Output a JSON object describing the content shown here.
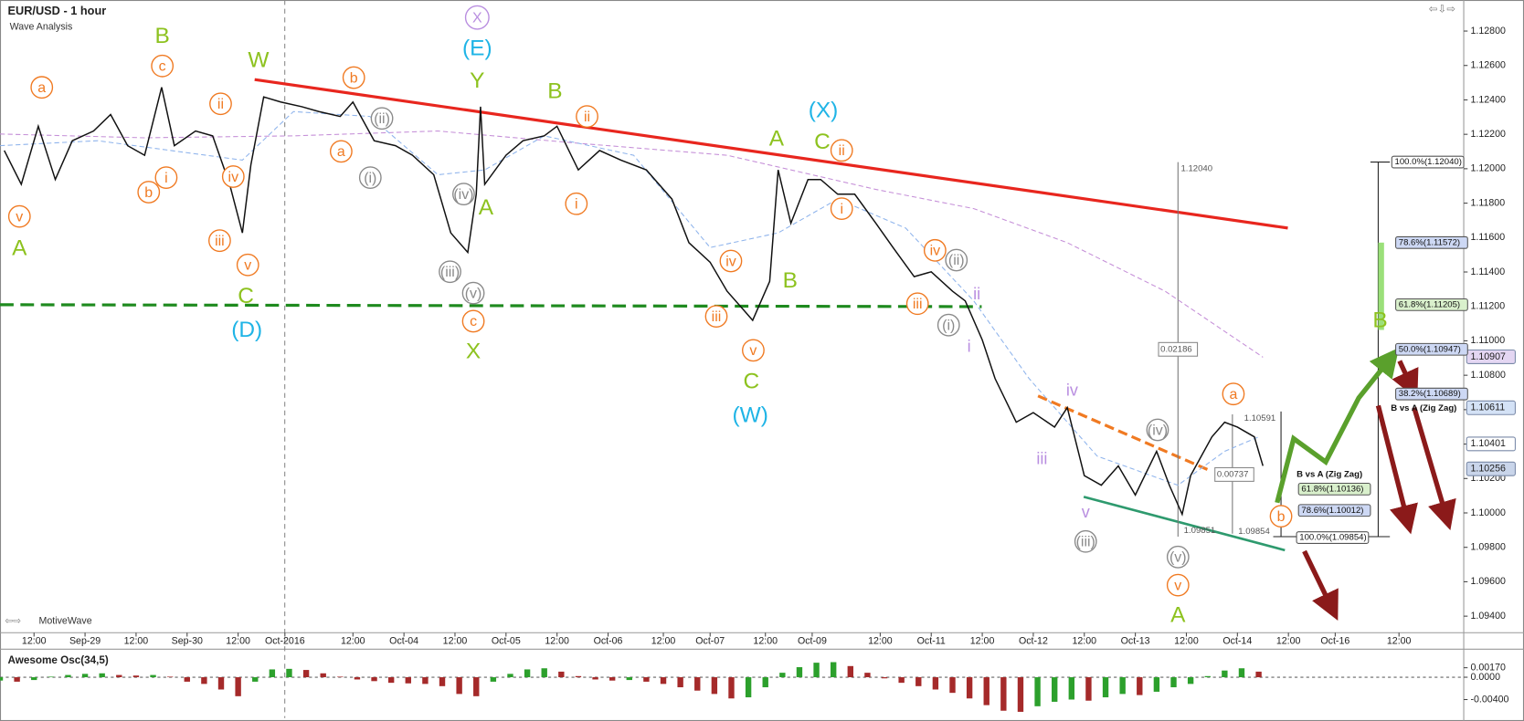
{
  "header": {
    "title": "EUR/USD - 1 hour",
    "subtitle": "Wave Analysis",
    "brand": "MotiveWave"
  },
  "chart_data": [
    {
      "type": "line",
      "xlim": [
        0,
        344
      ],
      "xticks": [
        {
          "value": 8,
          "label": "12:00"
        },
        {
          "value": 20,
          "label": "Sep-29"
        },
        {
          "value": 32,
          "label": "12:00"
        },
        {
          "value": 44,
          "label": "Sep-30"
        },
        {
          "value": 56,
          "label": "12:00"
        },
        {
          "value": 67,
          "label": "Oct-2016"
        },
        {
          "value": 83,
          "label": "12:00"
        },
        {
          "value": 95,
          "label": "Oct-04"
        },
        {
          "value": 107,
          "label": "12:00"
        },
        {
          "value": 119,
          "label": "Oct-05"
        },
        {
          "value": 131,
          "label": "12:00"
        },
        {
          "value": 143,
          "label": "Oct-06"
        },
        {
          "value": 156,
          "label": "12:00"
        },
        {
          "value": 167,
          "label": "Oct-07"
        },
        {
          "value": 180,
          "label": "12:00"
        },
        {
          "value": 191,
          "label": "Oct-09"
        },
        {
          "value": 207,
          "label": "12:00"
        },
        {
          "value": 219,
          "label": "Oct-11"
        },
        {
          "value": 231,
          "label": "12:00"
        },
        {
          "value": 243,
          "label": "Oct-12"
        },
        {
          "value": 255,
          "label": "12:00"
        },
        {
          "value": 267,
          "label": "Oct-13"
        },
        {
          "value": 279,
          "label": "12:00"
        },
        {
          "value": 291,
          "label": "Oct-14"
        },
        {
          "value": 303,
          "label": "12:00"
        },
        {
          "value": 314,
          "label": "Oct-16"
        },
        {
          "value": 329,
          "label": "12:00"
        }
      ],
      "ylim": [
        1.093,
        1.1295
      ],
      "yticks": [
        {
          "value": 1.094,
          "label": "1.09400"
        },
        {
          "value": 1.096,
          "label": "1.09600"
        },
        {
          "value": 1.098,
          "label": "1.09800"
        },
        {
          "value": 1.1,
          "label": "1.10000"
        },
        {
          "value": 1.102,
          "label": "1.10200"
        },
        {
          "value": 1.104,
          "label": "1.10400"
        },
        {
          "value": 1.106,
          "label": "1.10600"
        },
        {
          "value": 1.108,
          "label": "1.10800"
        },
        {
          "value": 1.11,
          "label": "1.11000"
        },
        {
          "value": 1.112,
          "label": "1.11200"
        },
        {
          "value": 1.114,
          "label": "1.11400"
        },
        {
          "value": 1.116,
          "label": "1.11600"
        },
        {
          "value": 1.118,
          "label": "1.11800"
        },
        {
          "value": 1.12,
          "label": "1.12000"
        },
        {
          "value": 1.122,
          "label": "1.12200"
        },
        {
          "value": 1.124,
          "label": "1.12400"
        },
        {
          "value": 1.126,
          "label": "1.12600"
        },
        {
          "value": 1.128,
          "label": "1.12800"
        }
      ],
      "series": [
        {
          "color": "#111111",
          "dashed": false,
          "x": [
            1,
            5,
            9,
            13,
            17,
            22,
            26,
            30,
            34,
            38,
            41,
            46,
            50,
            54,
            57,
            59,
            62,
            66,
            71,
            75,
            80,
            83,
            88,
            93,
            97,
            102,
            106,
            110,
            112,
            113,
            114,
            119,
            123,
            128,
            131,
            136,
            141,
            146,
            152,
            158,
            162,
            167,
            171,
            175,
            177,
            181,
            183,
            186,
            190,
            193,
            197,
            201,
            206,
            210,
            215,
            219,
            224,
            227,
            231,
            234,
            239,
            243,
            248,
            251,
            255,
            259,
            263,
            267,
            272,
            275,
            278,
            280,
            285,
            288,
            291,
            295,
            297
          ],
          "values": [
            1.12106,
            1.11909,
            1.12247,
            1.11937,
            1.12163,
            1.12219,
            1.12315,
            1.12134,
            1.12078,
            1.12473,
            1.12134,
            1.12219,
            1.12191,
            1.11909,
            1.11627,
            1.12022,
            1.12417,
            1.12388,
            1.1236,
            1.12332,
            1.12304,
            1.12388,
            1.12163,
            1.12134,
            1.12078,
            1.11965,
            1.11627,
            1.11514,
            1.11852,
            1.1236,
            1.11909,
            1.12078,
            1.12163,
            1.12191,
            1.12247,
            1.11993,
            1.12106,
            1.1205,
            1.11993,
            1.11824,
            1.1157,
            1.11457,
            1.11288,
            1.11176,
            1.11119,
            1.11345,
            1.11993,
            1.11683,
            1.11937,
            1.11937,
            1.11852,
            1.11852,
            1.11683,
            1.11542,
            1.11373,
            1.11401,
            1.11288,
            1.11232,
            1.11006,
            1.10781,
            1.10527,
            1.10583,
            1.10499,
            1.10612,
            1.10217,
            1.10161,
            1.10273,
            1.10104,
            1.10358,
            1.10161,
            1.09992,
            1.10217,
            1.10442,
            1.10527,
            1.10499,
            1.10442,
            1.10273
          ]
        },
        {
          "color": "#8fb4ec",
          "dashed": true,
          "x": [
            0,
            23,
            57,
            69,
            87,
            103,
            114,
            128,
            149,
            167,
            183,
            197,
            213,
            229,
            242,
            258,
            277,
            288,
            296
          ],
          "values": [
            1.12134,
            1.12163,
            1.1205,
            1.12332,
            1.12304,
            1.11965,
            1.11993,
            1.12191,
            1.12078,
            1.11542,
            1.11627,
            1.11824,
            1.11655,
            1.11232,
            1.10781,
            1.1033,
            1.10161,
            1.10358,
            1.10442
          ]
        },
        {
          "color": "#c58fd8",
          "dashed": true,
          "x": [
            0,
            34,
            69,
            103,
            137,
            171,
            206,
            229,
            251,
            274,
            297
          ],
          "values": [
            1.12202,
            1.1218,
            1.12191,
            1.12219,
            1.12146,
            1.12078,
            1.1188,
            1.11768,
            1.1157,
            1.11288,
            1.10905
          ]
        }
      ],
      "price_tags": [
        {
          "value": 1.10907,
          "label": "1.10907",
          "color": "#e4d6f2"
        },
        {
          "value": 1.10611,
          "label": "1.10611",
          "color": "#d4e2f6"
        },
        {
          "value": 1.10401,
          "label": "1.10401",
          "color": "#ffffff"
        },
        {
          "value": 1.10256,
          "label": "1.10256",
          "color": "#c9d5ea"
        }
      ],
      "wave_labels": [
        {
          "text": "v",
          "color": "#f07a22",
          "circled": true
        },
        {
          "text": "A",
          "color": "#8dc21f",
          "circled": false
        },
        {
          "text": "a",
          "color": "#f07a22",
          "circled": true
        },
        {
          "text": "b",
          "color": "#f07a22",
          "circled": true
        },
        {
          "text": "i",
          "color": "#f07a22",
          "circled": true
        },
        {
          "text": "c",
          "color": "#f07a22",
          "circled": true
        },
        {
          "text": "B",
          "color": "#8dc21f",
          "circled": false
        },
        {
          "text": "ii",
          "color": "#f07a22",
          "circled": true
        },
        {
          "text": "iv",
          "color": "#f07a22",
          "circled": true
        },
        {
          "text": "iii",
          "color": "#f07a22",
          "circled": true
        },
        {
          "text": "v",
          "color": "#f07a22",
          "circled": true
        },
        {
          "text": "C",
          "color": "#8dc21f",
          "circled": false
        },
        {
          "text": "(D)",
          "color": "#1fb4e6",
          "circled": false
        },
        {
          "text": "W",
          "color": "#8dc21f",
          "circled": false
        },
        {
          "text": "b",
          "color": "#f07a22",
          "circled": true
        },
        {
          "text": "a",
          "color": "#f07a22",
          "circled": true
        },
        {
          "text": "(ii)",
          "color": "#8a8a8a",
          "circled": true
        },
        {
          "text": "(i)",
          "color": "#8a8a8a",
          "circled": true
        },
        {
          "text": "X",
          "color": "#b98ee0",
          "circled": true
        },
        {
          "text": "(E)",
          "color": "#1fb4e6",
          "circled": false
        },
        {
          "text": "Y",
          "color": "#8dc21f",
          "circled": false
        },
        {
          "text": "(iv)",
          "color": "#8a8a8a",
          "circled": true
        },
        {
          "text": "A",
          "color": "#8dc21f",
          "circled": false
        },
        {
          "text": "(iii)",
          "color": "#8a8a8a",
          "circled": true
        },
        {
          "text": "(v)",
          "color": "#8a8a8a",
          "circled": true
        },
        {
          "text": "c",
          "color": "#f07a22",
          "circled": true
        },
        {
          "text": "X",
          "color": "#8dc21f",
          "circled": false
        },
        {
          "text": "B",
          "color": "#8dc21f",
          "circled": false
        },
        {
          "text": "ii",
          "color": "#f07a22",
          "circled": true
        },
        {
          "text": "i",
          "color": "#f07a22",
          "circled": true
        },
        {
          "text": "iv",
          "color": "#f07a22",
          "circled": true
        },
        {
          "text": "iii",
          "color": "#f07a22",
          "circled": true
        },
        {
          "text": "v",
          "color": "#f07a22",
          "circled": true
        },
        {
          "text": "C",
          "color": "#8dc21f",
          "circled": false
        },
        {
          "text": "(W)",
          "color": "#1fb4e6",
          "circled": false
        },
        {
          "text": "A",
          "color": "#8dc21f",
          "circled": false
        },
        {
          "text": "B",
          "color": "#8dc21f",
          "circled": false
        },
        {
          "text": "(X)",
          "color": "#1fb4e6",
          "circled": false
        },
        {
          "text": "C",
          "color": "#8dc21f",
          "circled": false
        },
        {
          "text": "ii",
          "color": "#f07a22",
          "circled": true
        },
        {
          "text": "i",
          "color": "#f07a22",
          "circled": true
        },
        {
          "text": "iv",
          "color": "#f07a22",
          "circled": true
        },
        {
          "text": "(ii)",
          "color": "#8a8a8a",
          "circled": true
        },
        {
          "text": "iii",
          "color": "#f07a22",
          "circled": true
        },
        {
          "text": "(i)",
          "color": "#8a8a8a",
          "circled": true
        },
        {
          "text": "ii",
          "color": "#b98ee0",
          "circled": false
        },
        {
          "text": "i",
          "color": "#b98ee0",
          "circled": false
        },
        {
          "text": "iv",
          "color": "#b98ee0",
          "circled": false
        },
        {
          "text": "iii",
          "color": "#b98ee0",
          "circled": false
        },
        {
          "text": "v",
          "color": "#b98ee0",
          "circled": false
        },
        {
          "text": "(iii)",
          "color": "#8a8a8a",
          "circled": true
        },
        {
          "text": "(iv)",
          "color": "#8a8a8a",
          "circled": true
        },
        {
          "text": "(v)",
          "color": "#8a8a8a",
          "circled": true
        },
        {
          "text": "v",
          "color": "#f07a22",
          "circled": true
        },
        {
          "text": "A",
          "color": "#8dc21f",
          "circled": false
        },
        {
          "text": "a",
          "color": "#f07a22",
          "circled": true
        },
        {
          "text": "b",
          "color": "#f07a22",
          "circled": true
        },
        {
          "text": "B",
          "color": "#8dc21f",
          "circled": false
        }
      ],
      "fib_labels": [
        {
          "text": "100.0%(1.12040)",
          "color": "#ffffff"
        },
        {
          "text": "78.6%(1.11572)",
          "color": "#cdd8f4"
        },
        {
          "text": "61.8%(1.11205)",
          "color": "#d9f0cc"
        },
        {
          "text": "50.0%(1.10947)",
          "color": "#cdd8f4"
        },
        {
          "text": "38.2%(1.10689)",
          "color": "#cdd8f4"
        },
        {
          "text": "B vs A (Zig Zag)"
        },
        {
          "text": "B vs A (Zig Zag)"
        },
        {
          "text": "61.8%(1.10136)",
          "color": "#d9f0cc"
        },
        {
          "text": "78.6%(1.10012)",
          "color": "#cdd8f4"
        },
        {
          "text": "100.0%(1.09854)",
          "color": "#ffffff"
        }
      ],
      "measure_labels": [
        {
          "text": "1.12040",
          "boxed": false
        },
        {
          "text": "0.02186",
          "boxed": true
        },
        {
          "text": "1.10591",
          "boxed": false
        },
        {
          "text": "0.00737",
          "boxed": true
        },
        {
          "text": "1.09851",
          "boxed": false
        },
        {
          "text": "1.09854",
          "boxed": false
        }
      ]
    },
    {
      "type": "bar",
      "title": "Awesome Osc(34,5)",
      "xlim": [
        0,
        344
      ],
      "ylim": [
        -0.0068,
        0.0045
      ],
      "yticks": [
        {
          "value": 0.0017,
          "label": "0.00170"
        },
        {
          "value": 0,
          "label": "0.0000"
        },
        {
          "value": -0.004,
          "label": "-0.00400"
        }
      ],
      "up_color": "#2ca02c",
      "down_color": "#a52a2a",
      "x": [
        0,
        4,
        8,
        12,
        16,
        20,
        24,
        28,
        32,
        36,
        40,
        44,
        48,
        52,
        56,
        60,
        64,
        68,
        72,
        76,
        80,
        84,
        88,
        92,
        96,
        100,
        104,
        108,
        112,
        116,
        120,
        124,
        128,
        132,
        136,
        140,
        144,
        148,
        152,
        156,
        160,
        164,
        168,
        172,
        176,
        180,
        184,
        188,
        192,
        196,
        200,
        204,
        208,
        212,
        216,
        220,
        224,
        228,
        232,
        236,
        240,
        244,
        248,
        252,
        256,
        260,
        264,
        268,
        272,
        276,
        280,
        284,
        288,
        292,
        296
      ],
      "values": [
        -0.0006,
        -0.0008,
        -0.0005,
        0.0001,
        0.0004,
        0.0006,
        0.0007,
        0.0004,
        0.0003,
        0.0004,
        0.0001,
        -0.0008,
        -0.0012,
        -0.0022,
        -0.0034,
        -0.0008,
        0.0014,
        0.0015,
        0.0013,
        0.0007,
        0.0001,
        -0.0004,
        -0.0007,
        -0.001,
        -0.0011,
        -0.0012,
        -0.0016,
        -0.003,
        -0.0034,
        -0.0008,
        0.0006,
        0.0014,
        0.0016,
        0.001,
        0.0002,
        -0.0004,
        -0.0006,
        -0.0005,
        -0.0008,
        -0.0012,
        -0.0018,
        -0.0024,
        -0.003,
        -0.0038,
        -0.0036,
        -0.0018,
        0.0008,
        0.0018,
        0.0026,
        0.0027,
        0.002,
        0.0008,
        -0.0002,
        -0.001,
        -0.0016,
        -0.0022,
        -0.0028,
        -0.0038,
        -0.005,
        -0.006,
        -0.0062,
        -0.0052,
        -0.0044,
        -0.004,
        -0.0042,
        -0.0036,
        -0.003,
        -0.0032,
        -0.0026,
        -0.0018,
        -0.0012,
        0.0002,
        0.0012,
        0.0016,
        0.001
      ]
    }
  ]
}
